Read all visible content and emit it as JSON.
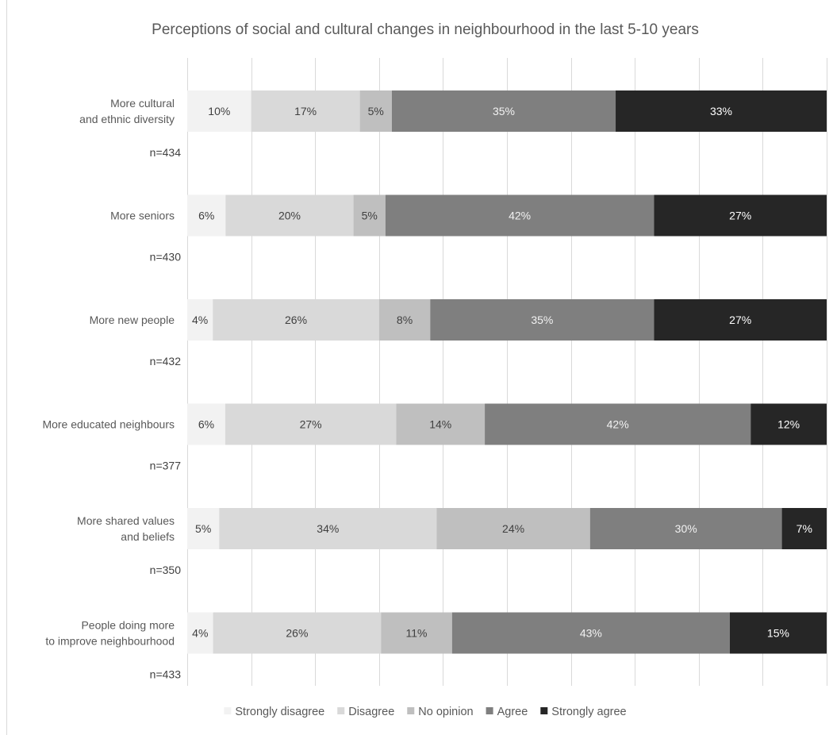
{
  "chart_data": {
    "type": "bar",
    "orientation": "horizontal",
    "stacked": true,
    "percent_stacked": true,
    "title": "Perceptions of social and cultural changes in neighbourhood in the last 5-10 years",
    "categories": [
      [
        "More cultural",
        "and ethnic diversity"
      ],
      [
        "More seniors"
      ],
      [
        "More new people"
      ],
      [
        "More educated neighbours"
      ],
      [
        "More shared values",
        "and beliefs"
      ],
      [
        "People doing more",
        "to improve neighbourhood"
      ]
    ],
    "sample_sizes": [
      "n=434",
      "n=430",
      "n=432",
      "n=377",
      "n=350",
      "n=433"
    ],
    "series": [
      {
        "name": "Strongly disagree",
        "color": "#f2f2f2",
        "label_color": "#404040",
        "values": [
          10,
          6,
          4,
          6,
          5,
          4
        ],
        "labels": [
          "10%",
          "6%",
          "4%",
          "6%",
          "5%",
          "4%"
        ]
      },
      {
        "name": "Disagree",
        "color": "#d9d9d9",
        "label_color": "#404040",
        "values": [
          17,
          20,
          26,
          27,
          34,
          26
        ],
        "labels": [
          "17%",
          "20%",
          "26%",
          "27%",
          "34%",
          "26%"
        ]
      },
      {
        "name": "No opinion",
        "color": "#bfbfbf",
        "label_color": "#404040",
        "values": [
          5,
          5,
          8,
          14,
          24,
          11
        ],
        "labels": [
          "5%",
          "5%",
          "8%",
          "14%",
          "24%",
          "11%"
        ]
      },
      {
        "name": "Agree",
        "color": "#7f7f7f",
        "label_color": "#f2f2f2",
        "values": [
          35,
          42,
          35,
          42,
          30,
          43
        ],
        "labels": [
          "35%",
          "42%",
          "35%",
          "42%",
          "30%",
          "43%"
        ]
      },
      {
        "name": "Strongly agree",
        "color": "#262626",
        "label_color": "#ffffff",
        "values": [
          33,
          27,
          27,
          12,
          7,
          15
        ],
        "labels": [
          "33%",
          "27%",
          "27%",
          "12%",
          "7%",
          "15%"
        ]
      }
    ],
    "xlim": [
      0,
      100
    ],
    "grid": true,
    "legend": "bottom"
  }
}
